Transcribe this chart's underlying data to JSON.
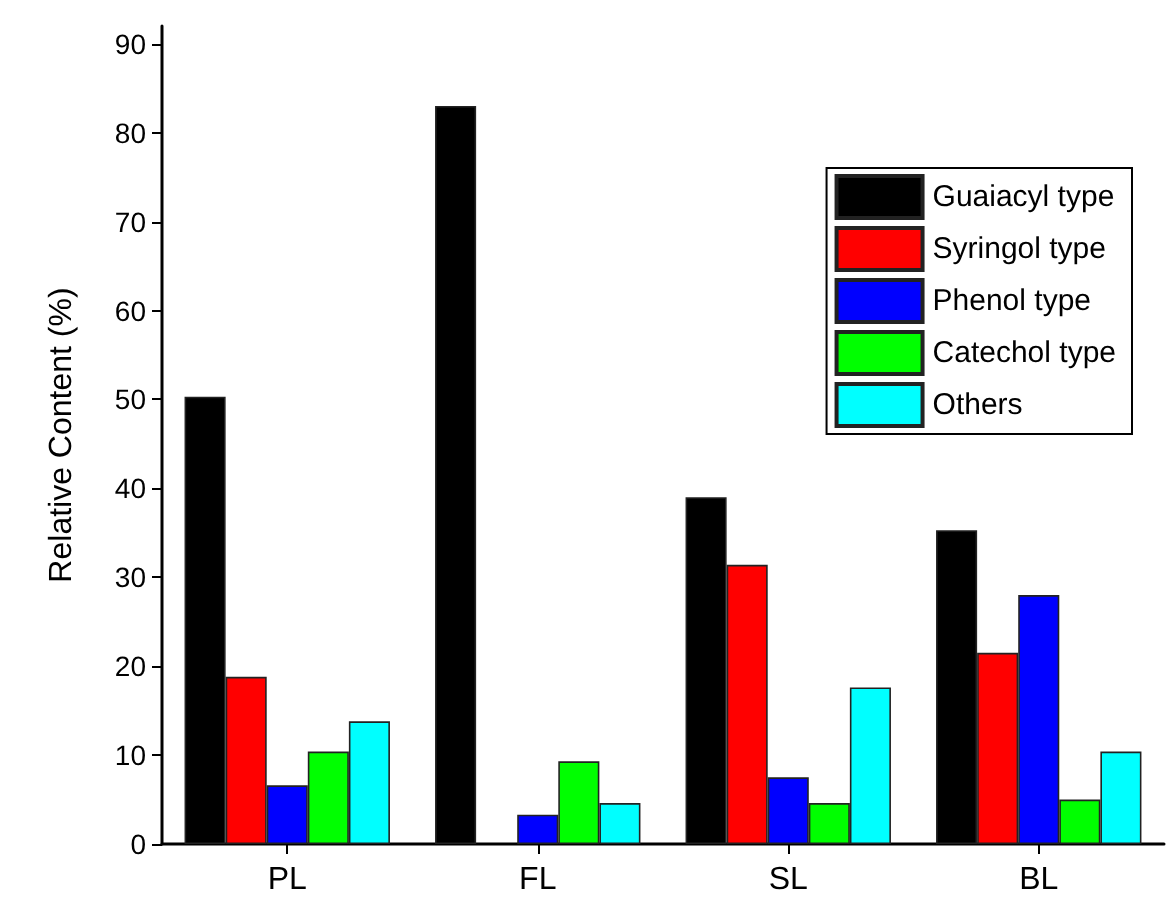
{
  "chart_data": {
    "type": "bar",
    "ylabel": "Relative Content (%)",
    "categories": [
      "PL",
      "FL",
      "SL",
      "BL"
    ],
    "series": [
      {
        "name": "Guaiacyl type",
        "color": "#000000",
        "values": [
          50.3,
          83.0,
          39.0,
          35.3
        ]
      },
      {
        "name": "Syringol type",
        "color": "#ff0000",
        "values": [
          18.8,
          null,
          31.4,
          21.5
        ]
      },
      {
        "name": "Phenol type",
        "color": "#0000ff",
        "values": [
          6.6,
          3.3,
          7.5,
          28.0
        ]
      },
      {
        "name": "Catechol type",
        "color": "#00ff00",
        "values": [
          10.4,
          9.3,
          4.6,
          5.0
        ]
      },
      {
        "name": "Others",
        "color": "#00ffff",
        "values": [
          13.8,
          4.6,
          17.6,
          10.4
        ]
      }
    ],
    "ylim": [
      0,
      92
    ],
    "yticks": [
      0,
      10,
      20,
      30,
      40,
      50,
      60,
      70,
      80,
      90
    ],
    "grid": false,
    "legend": "top right"
  }
}
